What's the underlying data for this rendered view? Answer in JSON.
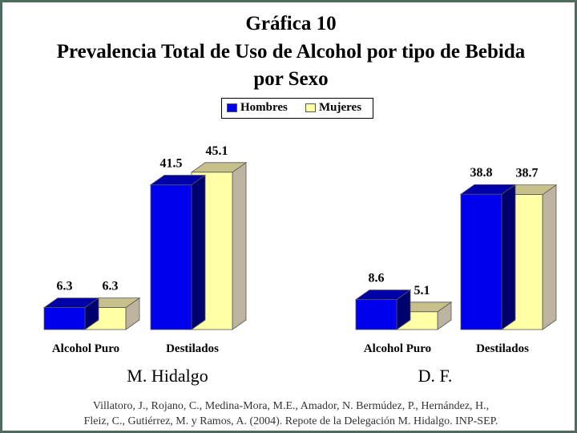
{
  "title_line1": "Gráfica 10",
  "title_line2": "Prevalencia Total de Uso de Alcohol por tipo de Bebida",
  "title_line3": "por Sexo",
  "legend": {
    "hombres": "Hombres",
    "mujeres": "Mujeres"
  },
  "colors": {
    "hombres": "#0000ee",
    "mujeres": "#ffffa6",
    "frame": "#4f6b5e"
  },
  "groups": {
    "left": "M. Hidalgo",
    "right": "D. F."
  },
  "source_line1": "Villatoro, J., Rojano, C., Medina-Mora, M.E., Amador, N. Bermúdez, P., Hernández, H.,",
  "source_line2": "Fleiz, C., Gutiérrez, M. y Ramos, A. (2004). Repote de la Delegación M. Hidalgo. INP-SEP.",
  "chart_data": [
    {
      "type": "bar",
      "title": "M. Hidalgo",
      "categories": [
        "Alcohol Puro",
        "Destilados"
      ],
      "series": [
        {
          "name": "Hombres",
          "values": [
            6.3,
            41.5
          ]
        },
        {
          "name": "Mujeres",
          "values": [
            6.3,
            45.1
          ]
        }
      ],
      "data_labels": [
        [
          "6.3",
          "41.5"
        ],
        [
          "6.3",
          "45.1"
        ]
      ]
    },
    {
      "type": "bar",
      "title": "D. F.",
      "categories": [
        "Alcohol Puro",
        "Destilados"
      ],
      "series": [
        {
          "name": "Hombres",
          "values": [
            8.6,
            38.8
          ]
        },
        {
          "name": "Mujeres",
          "values": [
            5.1,
            38.7
          ]
        }
      ],
      "data_labels": [
        [
          "8.6",
          "38.8"
        ],
        [
          "5.1",
          "38.7"
        ]
      ]
    }
  ]
}
